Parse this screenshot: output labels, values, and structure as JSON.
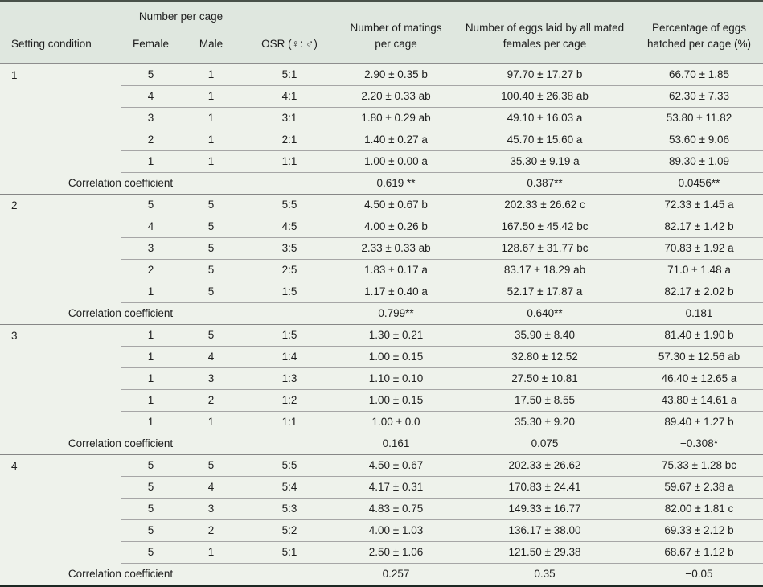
{
  "table": {
    "header": {
      "setting_condition": "Setting condition",
      "number_per_cage": "Number per cage",
      "female": "Female",
      "male": "Male",
      "osr": "OSR (♀: ♂)",
      "matings": "Number of matings per cage",
      "eggs": "Number of eggs laid by all mated females per cage",
      "hatched": "Percentage of eggs hatched per cage (%)"
    },
    "correlation_label": "Correlation coefficient",
    "sections": [
      {
        "condition": "1",
        "rows": [
          {
            "female": "5",
            "male": "1",
            "osr": "5:1",
            "matings": "2.90 ± 0.35 b",
            "eggs": "97.70 ± 17.27 b",
            "hatched": "66.70 ± 1.85"
          },
          {
            "female": "4",
            "male": "1",
            "osr": "4:1",
            "matings": "2.20 ± 0.33 ab",
            "eggs": "100.40 ± 26.38 ab",
            "hatched": "62.30 ± 7.33"
          },
          {
            "female": "3",
            "male": "1",
            "osr": "3:1",
            "matings": "1.80 ± 0.29 ab",
            "eggs": "49.10 ± 16.03 a",
            "hatched": "53.80 ± 11.82"
          },
          {
            "female": "2",
            "male": "1",
            "osr": "2:1",
            "matings": "1.40 ± 0.27 a",
            "eggs": "45.70 ± 15.60 a",
            "hatched": "53.60 ± 9.06"
          },
          {
            "female": "1",
            "male": "1",
            "osr": "1:1",
            "matings": "1.00 ± 0.00 a",
            "eggs": "35.30 ± 9.19 a",
            "hatched": "89.30 ± 1.09"
          }
        ],
        "correlation": {
          "matings": "0.619 **",
          "eggs": "0.387**",
          "hatched": "0.0456**"
        }
      },
      {
        "condition": "2",
        "rows": [
          {
            "female": "5",
            "male": "5",
            "osr": "5:5",
            "matings": "4.50 ± 0.67 b",
            "eggs": "202.33 ± 26.62 c",
            "hatched": "72.33 ± 1.45 a"
          },
          {
            "female": "4",
            "male": "5",
            "osr": "4:5",
            "matings": "4.00 ± 0.26 b",
            "eggs": "167.50 ± 45.42 bc",
            "hatched": "82.17 ± 1.42 b"
          },
          {
            "female": "3",
            "male": "5",
            "osr": "3:5",
            "matings": "2.33 ± 0.33 ab",
            "eggs": "128.67 ± 31.77 bc",
            "hatched": "70.83 ± 1.92 a"
          },
          {
            "female": "2",
            "male": "5",
            "osr": "2:5",
            "matings": "1.83 ± 0.17 a",
            "eggs": "83.17 ± 18.29 ab",
            "hatched": "71.0 ± 1.48 a"
          },
          {
            "female": "1",
            "male": "5",
            "osr": "1:5",
            "matings": "1.17 ± 0.40 a",
            "eggs": "52.17 ± 17.87 a",
            "hatched": "82.17 ± 2.02 b"
          }
        ],
        "correlation": {
          "matings": "0.799**",
          "eggs": "0.640**",
          "hatched": "0.181"
        }
      },
      {
        "condition": "3",
        "rows": [
          {
            "female": "1",
            "male": "5",
            "osr": "1:5",
            "matings": "1.30 ± 0.21",
            "eggs": "35.90 ± 8.40",
            "hatched": "81.40 ± 1.90 b"
          },
          {
            "female": "1",
            "male": "4",
            "osr": "1:4",
            "matings": "1.00 ± 0.15",
            "eggs": "32.80 ± 12.52",
            "hatched": "57.30 ± 12.56 ab"
          },
          {
            "female": "1",
            "male": "3",
            "osr": "1:3",
            "matings": "1.10 ± 0.10",
            "eggs": "27.50 ± 10.81",
            "hatched": "46.40 ± 12.65 a"
          },
          {
            "female": "1",
            "male": "2",
            "osr": "1:2",
            "matings": "1.00 ± 0.15",
            "eggs": "17.50 ± 8.55",
            "hatched": "43.80 ± 14.61 a"
          },
          {
            "female": "1",
            "male": "1",
            "osr": "1:1",
            "matings": "1.00 ± 0.0",
            "eggs": "35.30 ± 9.20",
            "hatched": "89.40 ± 1.27 b"
          }
        ],
        "correlation": {
          "matings": "0.161",
          "eggs": "0.075",
          "hatched": "−0.308*"
        }
      },
      {
        "condition": "4",
        "rows": [
          {
            "female": "5",
            "male": "5",
            "osr": "5:5",
            "matings": "4.50 ± 0.67",
            "eggs": "202.33 ± 26.62",
            "hatched": "75.33 ± 1.28 bc"
          },
          {
            "female": "5",
            "male": "4",
            "osr": "5:4",
            "matings": "4.17 ± 0.31",
            "eggs": "170.83 ± 24.41",
            "hatched": "59.67 ± 2.38 a"
          },
          {
            "female": "5",
            "male": "3",
            "osr": "5:3",
            "matings": "4.83 ± 0.75",
            "eggs": "149.33 ± 16.77",
            "hatched": "82.00 ± 1.81 c"
          },
          {
            "female": "5",
            "male": "2",
            "osr": "5:2",
            "matings": "4.00 ± 1.03",
            "eggs": "136.17 ± 38.00",
            "hatched": "69.33 ± 2.12 b"
          },
          {
            "female": "5",
            "male": "1",
            "osr": "5:1",
            "matings": "2.50 ± 1.06",
            "eggs": "121.50 ± 29.38",
            "hatched": "68.67 ± 1.12 b"
          }
        ],
        "correlation": {
          "matings": "0.257",
          "eggs": "0.35",
          "hatched": "−0.05"
        }
      }
    ]
  },
  "colors": {
    "header_background": "#dfe7df",
    "body_background": "#eef2eb",
    "top_border": "#49514a",
    "bottom_border": "#1d2823",
    "row_divider": "#a6a6a6",
    "text": "#1e1e1e"
  }
}
